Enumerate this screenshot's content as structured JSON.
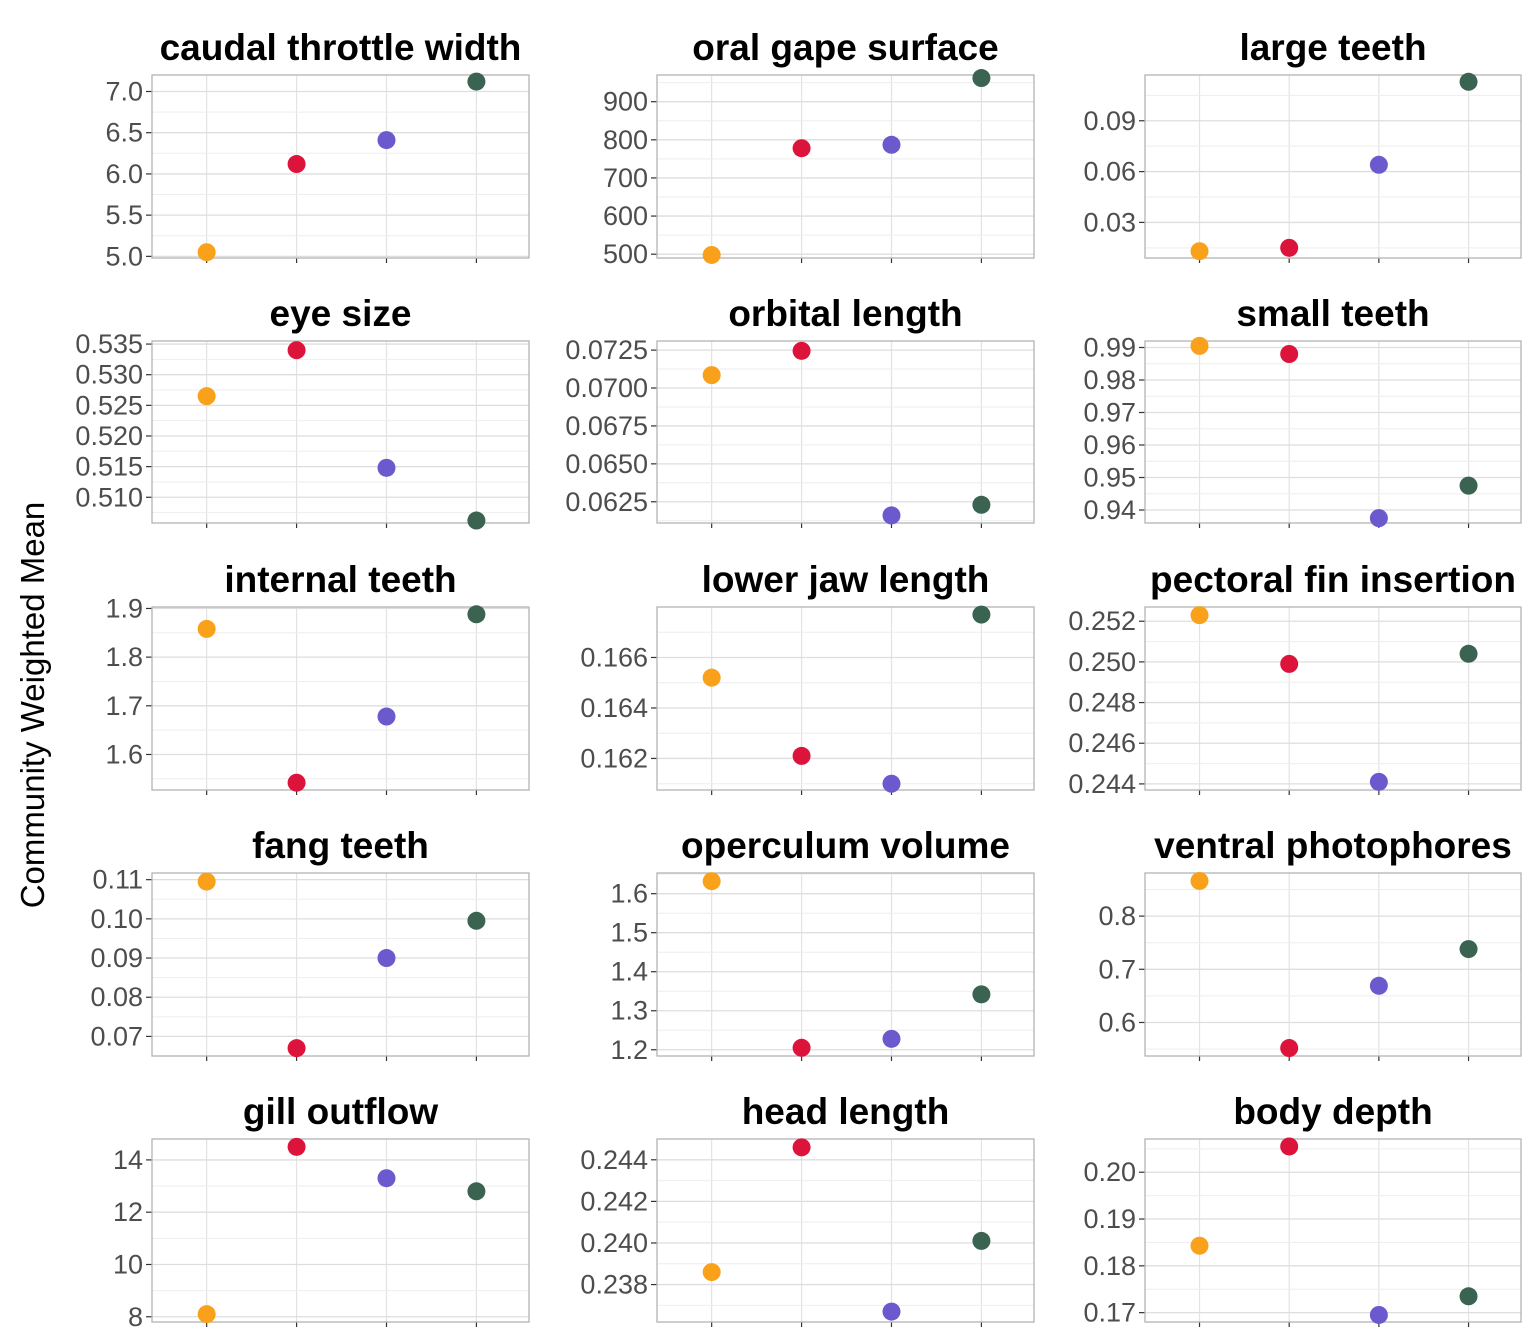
{
  "chart_data": {
    "type": "scatter",
    "ylabel": "Community Weighted Mean",
    "group_colors": [
      "#F9A11B",
      "#DC143C",
      "#6A5ACD",
      "#3B6351"
    ],
    "grid": true,
    "layout": "5 rows x 3 columns",
    "panels": [
      {
        "title": "caudal throttle width",
        "values": [
          5.05,
          6.12,
          6.41,
          7.12
        ],
        "ylim": [
          4.98,
          7.2
        ],
        "ticks": [
          "5.0",
          "5.5",
          "6.0",
          "6.5",
          "7.0"
        ]
      },
      {
        "title": "oral gape surface",
        "values": [
          498,
          778,
          787,
          962
        ],
        "ylim": [
          490,
          970
        ],
        "ticks": [
          "500",
          "600",
          "700",
          "800",
          "900"
        ]
      },
      {
        "title": "large teeth",
        "values": [
          0.013,
          0.015,
          0.064,
          0.113
        ],
        "ylim": [
          0.009,
          0.117
        ],
        "ticks": [
          "0.03",
          "0.06",
          "0.09"
        ]
      },
      {
        "title": "eye size",
        "values": [
          0.5265,
          0.534,
          0.5148,
          0.5062
        ],
        "ylim": [
          0.5058,
          0.5355
        ],
        "ticks": [
          "0.510",
          "0.515",
          "0.520",
          "0.525",
          "0.530",
          "0.535"
        ]
      },
      {
        "title": "orbital length",
        "values": [
          0.07085,
          0.07245,
          0.0616,
          0.0623
        ],
        "ylim": [
          0.0611,
          0.0731
        ],
        "ticks": [
          "0.0625",
          "0.0650",
          "0.0675",
          "0.0700",
          "0.0725"
        ]
      },
      {
        "title": "small teeth",
        "values": [
          0.9905,
          0.988,
          0.9375,
          0.9475
        ],
        "ylim": [
          0.936,
          0.992
        ],
        "ticks": [
          "0.94",
          "0.95",
          "0.96",
          "0.97",
          "0.98",
          "0.99"
        ]
      },
      {
        "title": "internal teeth",
        "values": [
          1.858,
          1.542,
          1.678,
          1.888
        ],
        "ylim": [
          1.527,
          1.903
        ],
        "ticks": [
          "1.6",
          "1.7",
          "1.8",
          "1.9"
        ]
      },
      {
        "title": "lower jaw length",
        "values": [
          0.1652,
          0.1621,
          0.161,
          0.1677
        ],
        "ylim": [
          0.16075,
          0.168
        ],
        "ticks": [
          "0.162",
          "0.164",
          "0.166"
        ]
      },
      {
        "title": "pectoral fin insertion",
        "values": [
          0.2523,
          0.2499,
          0.2441,
          0.2504
        ],
        "ylim": [
          0.2437,
          0.2527
        ],
        "ticks": [
          "0.244",
          "0.246",
          "0.248",
          "0.250",
          "0.252"
        ]
      },
      {
        "title": "fang teeth",
        "values": [
          0.1095,
          0.067,
          0.09,
          0.0995
        ],
        "ylim": [
          0.065,
          0.1117
        ],
        "ticks": [
          "0.07",
          "0.08",
          "0.09",
          "0.10",
          "0.11"
        ]
      },
      {
        "title": "operculum volume",
        "values": [
          1.632,
          1.205,
          1.228,
          1.342
        ],
        "ylim": [
          1.184,
          1.653
        ],
        "ticks": [
          "1.2",
          "1.3",
          "1.4",
          "1.5",
          "1.6"
        ]
      },
      {
        "title": "ventral photophores",
        "values": [
          0.866,
          0.552,
          0.669,
          0.738
        ],
        "ylim": [
          0.537,
          0.881
        ],
        "ticks": [
          "0.6",
          "0.7",
          "0.8"
        ]
      },
      {
        "title": "gill outflow",
        "values": [
          8.1,
          14.5,
          13.3,
          12.8
        ],
        "ylim": [
          7.8,
          14.8
        ],
        "ticks": [
          "8",
          "10",
          "12",
          "14"
        ]
      },
      {
        "title": "head length",
        "values": [
          0.2386,
          0.2446,
          0.2367,
          0.2401
        ],
        "ylim": [
          0.2362,
          0.245
        ],
        "ticks": [
          "0.238",
          "0.240",
          "0.242",
          "0.244"
        ]
      },
      {
        "title": "body depth",
        "values": [
          0.1843,
          0.2055,
          0.1695,
          0.1735
        ],
        "ylim": [
          0.168,
          0.2071
        ],
        "ticks": [
          "0.17",
          "0.18",
          "0.19",
          "0.20"
        ]
      }
    ]
  }
}
